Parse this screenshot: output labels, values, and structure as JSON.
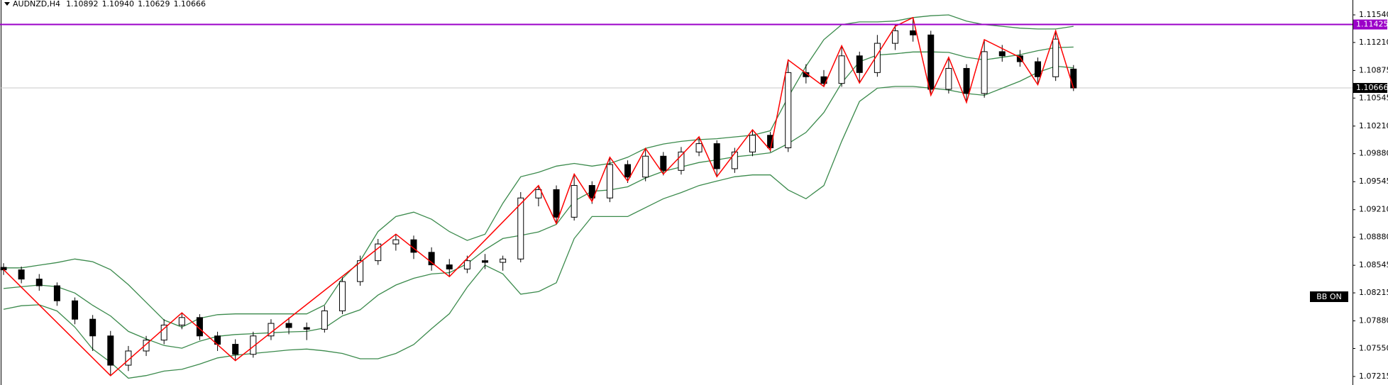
{
  "chart_data": {
    "type": "candlestick",
    "title": "AUDNZD,H4",
    "last_bar_labels": [
      "1.10892",
      "1.10940",
      "1.10629",
      "1.10666"
    ],
    "indicator_label": "BB ON",
    "ylim": [
      1.07113,
      1.11718
    ],
    "yticks": [
      {
        "value": 1.1154,
        "label": "1.11540"
      },
      {
        "value": 1.1121,
        "label": "1.11210"
      },
      1.10875,
      1.10545,
      {
        "value": 1.1021,
        "label": "1.10210"
      },
      {
        "value": 1.0988,
        "label": "1.09880"
      },
      1.09545,
      {
        "value": 1.0921,
        "label": "1.09210"
      },
      {
        "value": 1.0888,
        "label": "1.08880"
      },
      1.08545,
      1.08215,
      {
        "value": 1.0788,
        "label": "1.07880"
      },
      {
        "value": 1.0755,
        "label": "1.07550"
      },
      1.07215
    ],
    "level_line": {
      "value": 1.11425,
      "color": "#9b00c8"
    },
    "current_price": 1.10666,
    "candles": {
      "open": [
        1.0852,
        1.0849,
        1.0838,
        1.083,
        1.0812,
        1.079,
        1.077,
        1.0735,
        1.0752,
        1.0765,
        1.0783,
        1.0792,
        1.077,
        1.076,
        1.0748,
        1.077,
        1.0785,
        1.078,
        1.0778,
        1.08,
        1.0835,
        1.086,
        1.088,
        1.0885,
        1.087,
        1.0855,
        1.085,
        1.086,
        1.0858,
        1.0862,
        1.0935,
        1.0945,
        1.0912,
        1.095,
        1.0935,
        1.0975,
        1.096,
        1.0985,
        1.0968,
        1.099,
        1.1,
        1.097,
        1.099,
        1.101,
        1.0995,
        1.1085,
        1.108,
        1.1072,
        1.1105,
        1.1085,
        1.112,
        1.1135,
        1.113,
        1.1065,
        1.109,
        1.106,
        1.111,
        1.1105,
        1.1098,
        1.108,
        1.10892
      ],
      "high": [
        1.0857,
        1.0853,
        1.0844,
        1.0834,
        1.0816,
        1.0795,
        1.0776,
        1.0758,
        1.077,
        1.079,
        1.0798,
        1.0796,
        1.0775,
        1.0766,
        1.0775,
        1.079,
        1.0792,
        1.0786,
        1.0806,
        1.084,
        1.0866,
        1.0886,
        1.0892,
        1.089,
        1.0876,
        1.0862,
        1.0866,
        1.0868,
        1.0866,
        1.0942,
        1.095,
        1.095,
        1.0963,
        1.0955,
        1.0984,
        1.098,
        1.0994,
        1.099,
        1.0996,
        1.1008,
        1.1004,
        1.0995,
        1.1017,
        1.1014,
        1.11,
        1.1095,
        1.1088,
        1.1117,
        1.111,
        1.113,
        1.1142,
        1.1151,
        1.1135,
        1.1103,
        1.1095,
        1.1124,
        1.1118,
        1.1112,
        1.1103,
        1.1135,
        1.1094
      ],
      "low": [
        1.0843,
        1.0833,
        1.0824,
        1.0806,
        1.0784,
        1.0752,
        1.0723,
        1.0728,
        1.0746,
        1.076,
        1.0778,
        1.0765,
        1.0752,
        1.0741,
        1.0744,
        1.0765,
        1.0772,
        1.0765,
        1.0774,
        1.0796,
        1.083,
        1.0855,
        1.0872,
        1.0862,
        1.0848,
        1.0841,
        1.0845,
        1.085,
        1.0848,
        1.0858,
        1.0925,
        1.0905,
        1.0908,
        1.0928,
        1.093,
        1.0953,
        1.0955,
        1.0962,
        1.0963,
        1.0985,
        1.096,
        1.0965,
        1.0985,
        1.099,
        1.099,
        1.1072,
        1.1068,
        1.1068,
        1.1072,
        1.108,
        1.1112,
        1.1122,
        1.1058,
        1.106,
        1.1049,
        1.1055,
        1.1098,
        1.1092,
        1.1071,
        1.1075,
        1.10629
      ],
      "close": [
        1.0849,
        1.0838,
        1.083,
        1.0812,
        1.079,
        1.077,
        1.0735,
        1.0752,
        1.0765,
        1.0783,
        1.0792,
        1.077,
        1.076,
        1.0748,
        1.077,
        1.0785,
        1.078,
        1.0778,
        1.08,
        1.0835,
        1.086,
        1.088,
        1.0885,
        1.087,
        1.0855,
        1.085,
        1.086,
        1.0858,
        1.0862,
        1.0935,
        1.0945,
        1.0912,
        1.095,
        1.0935,
        1.0975,
        1.096,
        1.0985,
        1.0968,
        1.099,
        1.1,
        1.097,
        1.099,
        1.101,
        1.0995,
        1.1085,
        1.108,
        1.1072,
        1.1105,
        1.1085,
        1.112,
        1.1135,
        1.113,
        1.1065,
        1.109,
        1.106,
        1.111,
        1.1105,
        1.1098,
        1.108,
        1.1125,
        1.10666
      ]
    },
    "bands": {
      "color": "#3b8a4c",
      "upper": [
        1.08514,
        1.08514,
        1.08546,
        1.08578,
        1.0862,
        1.08588,
        1.08493,
        1.08313,
        1.08102,
        1.0789,
        1.07805,
        1.07911,
        1.07954,
        1.07964,
        1.07964,
        1.07964,
        1.07964,
        1.07964,
        1.0807,
        1.08387,
        1.08599,
        1.08948,
        1.09128,
        1.09181,
        1.09096,
        1.08948,
        1.08842,
        1.08916,
        1.09287,
        1.09604,
        1.09657,
        1.09731,
        1.09763,
        1.09731,
        1.09763,
        1.09837,
        1.09943,
        1.09996,
        1.10027,
        1.10048,
        1.10059,
        1.1008,
        1.10101,
        1.10154,
        1.10556,
        1.10926,
        1.11244,
        1.11424,
        1.11456,
        1.11456,
        1.11466,
        1.11508,
        1.1153,
        1.1154,
        1.11466,
        1.11424,
        1.11403,
        1.11381,
        1.11371,
        1.11371,
        1.11403
      ],
      "middle": [
        1.08267,
        1.08288,
        1.08309,
        1.08288,
        1.08213,
        1.08066,
        1.07939,
        1.07754,
        1.07664,
        1.07585,
        1.07553,
        1.07637,
        1.07696,
        1.07717,
        1.07727,
        1.07738,
        1.07748,
        1.07754,
        1.07796,
        1.07939,
        1.08013,
        1.08188,
        1.08309,
        1.08389,
        1.08441,
        1.08457,
        1.08563,
        1.08731,
        1.08865,
        1.08902,
        1.08944,
        1.09034,
        1.09314,
        1.0943,
        1.09446,
        1.09483,
        1.09589,
        1.09669,
        1.09721,
        1.09774,
        1.09806,
        1.09842,
        1.09864,
        1.0989,
        1.10001,
        1.10134,
        1.10372,
        1.10726,
        1.1098,
        1.1106,
        1.11075,
        1.11096,
        1.11097,
        1.11091,
        1.11033,
        1.11001,
        1.11033,
        1.11064,
        1.11112,
        1.11149,
        1.11155
      ],
      "lower": [
        1.08019,
        1.08061,
        1.08072,
        1.07998,
        1.07805,
        1.07543,
        1.07384,
        1.07194,
        1.07226,
        1.07279,
        1.073,
        1.07363,
        1.07437,
        1.07469,
        1.0749,
        1.07511,
        1.07532,
        1.07543,
        1.07522,
        1.0749,
        1.07427,
        1.07427,
        1.0749,
        1.07596,
        1.07786,
        1.07966,
        1.08283,
        1.08546,
        1.08442,
        1.08199,
        1.0823,
        1.08336,
        1.08865,
        1.09128,
        1.09128,
        1.09128,
        1.09235,
        1.09341,
        1.09415,
        1.09499,
        1.09552,
        1.09604,
        1.09626,
        1.09626,
        1.09446,
        1.09341,
        1.09499,
        1.10028,
        1.10504,
        1.10663,
        1.10684,
        1.10684,
        1.10663,
        1.10641,
        1.10599,
        1.10578,
        1.10663,
        1.10747,
        1.10853,
        1.10926,
        1.10906
      ]
    },
    "zigzag": {
      "color": "#ff0000",
      "x": [
        0,
        6,
        10,
        13,
        22,
        25,
        30,
        31,
        32,
        33,
        34,
        35,
        36,
        37,
        39,
        40,
        42,
        43,
        44,
        46,
        47,
        48,
        50,
        51,
        52,
        53,
        54,
        55,
        57,
        58,
        59,
        60
      ],
      "values": [
        1.08494,
        1.07225,
        1.07976,
        1.07405,
        1.08917,
        1.0841,
        1.09499,
        1.09044,
        1.09636,
        1.09309,
        1.09837,
        1.09552,
        1.09943,
        1.09636,
        1.10081,
        1.09605,
        1.10165,
        1.09922,
        1.11001,
        1.10683,
        1.1117,
        1.10726,
        1.11403,
        1.11508,
        1.10578,
        1.11032,
        1.10493,
        1.11244,
        1.11032,
        1.10705,
        1.1135,
        1.10662
      ]
    }
  }
}
